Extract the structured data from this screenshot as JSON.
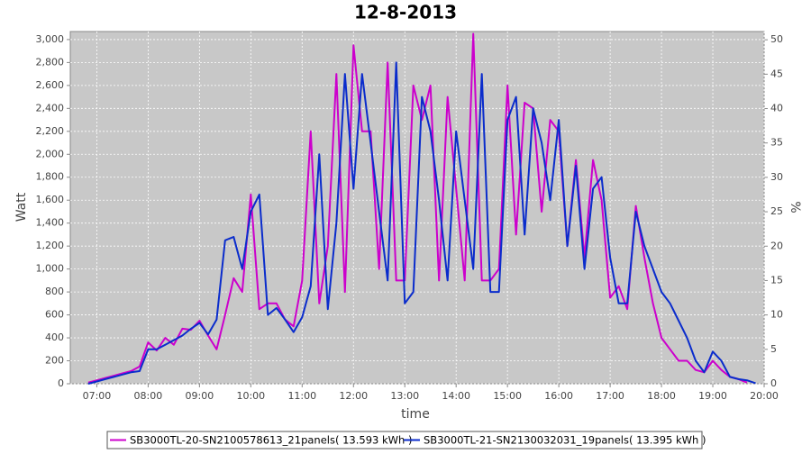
{
  "chart_data": {
    "type": "line",
    "title": "12-8-2013",
    "x_label": "time",
    "y_label": "Watt",
    "y2_label": "%",
    "x": [
      "06:50",
      "07:00",
      "07:10",
      "07:20",
      "07:30",
      "07:40",
      "07:50",
      "08:00",
      "08:10",
      "08:20",
      "08:30",
      "08:40",
      "08:50",
      "09:00",
      "09:10",
      "09:20",
      "09:30",
      "09:40",
      "09:50",
      "10:00",
      "10:10",
      "10:20",
      "10:30",
      "10:40",
      "10:50",
      "11:00",
      "11:10",
      "11:20",
      "11:30",
      "11:40",
      "11:50",
      "12:00",
      "12:10",
      "12:20",
      "12:30",
      "12:40",
      "12:50",
      "13:00",
      "13:10",
      "13:20",
      "13:30",
      "13:40",
      "13:50",
      "14:00",
      "14:10",
      "14:20",
      "14:30",
      "14:40",
      "14:50",
      "15:00",
      "15:10",
      "15:20",
      "15:30",
      "15:40",
      "15:50",
      "16:00",
      "16:10",
      "16:20",
      "16:30",
      "16:40",
      "16:50",
      "17:00",
      "17:10",
      "17:20",
      "17:30",
      "17:40",
      "17:50",
      "18:00",
      "18:10",
      "18:20",
      "18:30",
      "18:40",
      "18:50",
      "19:00",
      "19:10",
      "19:20",
      "19:30",
      "19:40",
      "19:50"
    ],
    "series": [
      {
        "name": "SB3000TL-20-SN2100578613_21panels( 13.593 kWh )",
        "color": "#cc00cc",
        "values": [
          10,
          30,
          50,
          70,
          90,
          110,
          150,
          360,
          290,
          400,
          340,
          480,
          470,
          550,
          420,
          300,
          600,
          920,
          800,
          1650,
          650,
          700,
          700,
          560,
          500,
          900,
          2200,
          700,
          1200,
          2700,
          800,
          2950,
          2200,
          2200,
          1000,
          2800,
          900,
          900,
          2600,
          2300,
          2600,
          900,
          2500,
          1700,
          900,
          3050,
          900,
          900,
          1000,
          2600,
          1300,
          2450,
          2400,
          1500,
          2300,
          2200,
          1200,
          1950,
          1100,
          1950,
          1600,
          750,
          850,
          650,
          1550,
          1100,
          700,
          400,
          300,
          200,
          200,
          120,
          100,
          200,
          120,
          60,
          40,
          10,
          null
        ]
      },
      {
        "name": "SB3000TL-21-SN2130032031_19panels( 13.395 kWh )",
        "color": "#0a2ccc",
        "values": [
          0,
          20,
          40,
          60,
          80,
          100,
          110,
          300,
          300,
          340,
          380,
          420,
          480,
          530,
          430,
          560,
          1250,
          1280,
          1000,
          1500,
          1650,
          600,
          660,
          560,
          450,
          580,
          850,
          2000,
          650,
          1400,
          2700,
          1700,
          2700,
          2100,
          1500,
          900,
          2800,
          700,
          800,
          2500,
          2200,
          1600,
          900,
          2200,
          1600,
          1000,
          2700,
          800,
          800,
          2300,
          2500,
          1300,
          2400,
          2100,
          1600,
          2300,
          1200,
          1900,
          1000,
          1700,
          1800,
          1100,
          700,
          700,
          1500,
          1200,
          1000,
          800,
          700,
          550,
          400,
          200,
          100,
          280,
          200,
          60,
          40,
          30,
          5
        ]
      }
    ],
    "xlim": [
      "06:29",
      "20:00"
    ],
    "xticks": [
      "07:00",
      "08:00",
      "09:00",
      "10:00",
      "11:00",
      "12:00",
      "13:00",
      "14:00",
      "15:00",
      "16:00",
      "17:00",
      "18:00",
      "19:00",
      "20:00"
    ],
    "ylim": [
      0,
      3070
    ],
    "yticks": [
      0,
      200,
      400,
      600,
      800,
      {
        "value": 1000,
        "label": "1,000"
      },
      {
        "value": 1200,
        "label": "1,200"
      },
      {
        "value": 1400,
        "label": "1,400"
      },
      {
        "value": 1600,
        "label": "1,600"
      },
      {
        "value": 1800,
        "label": "1,800"
      },
      {
        "value": 2000,
        "label": "2,000"
      },
      {
        "value": 2200,
        "label": "2,200"
      },
      {
        "value": 2400,
        "label": "2,400"
      },
      {
        "value": 2600,
        "label": "2,600"
      },
      {
        "value": 2800,
        "label": "2,800"
      },
      {
        "value": 3000,
        "label": "3,000"
      }
    ],
    "y2lim": [
      0,
      51.2
    ],
    "y2ticks": [
      0,
      5,
      10,
      15,
      20,
      25,
      30,
      35,
      40,
      45,
      50
    ],
    "grid": true
  }
}
